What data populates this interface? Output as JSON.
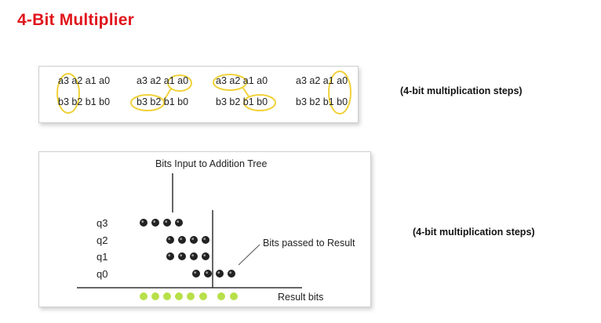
{
  "title": "4-Bit Multiplier",
  "panel1": {
    "groups": [
      {
        "top": "a3 a2 a1 a0",
        "bottom": "b3 b2 b1 b0"
      },
      {
        "top": "a3 a2 a1 a0",
        "bottom": "b3 b2 b1 b0"
      },
      {
        "top": "a3 a2 a1 a0",
        "bottom": "b3 b2 b1 b0"
      },
      {
        "top": "a3 a2 a1 a0",
        "bottom": "b3 b2 b1 b0"
      }
    ],
    "highlight_color": "#f0d23a"
  },
  "caption1": "(4-bit multiplication steps)",
  "caption2": "(4-bit multiplication steps)",
  "panel2": {
    "label_input": "Bits Input to Addition Tree",
    "label_passed": "Bits passed to Result",
    "label_result": "Result bits",
    "rows": [
      "q3",
      "q2",
      "q1",
      "q0"
    ],
    "dot_color": "#222222",
    "result_dot_color": "#b8e04a"
  }
}
